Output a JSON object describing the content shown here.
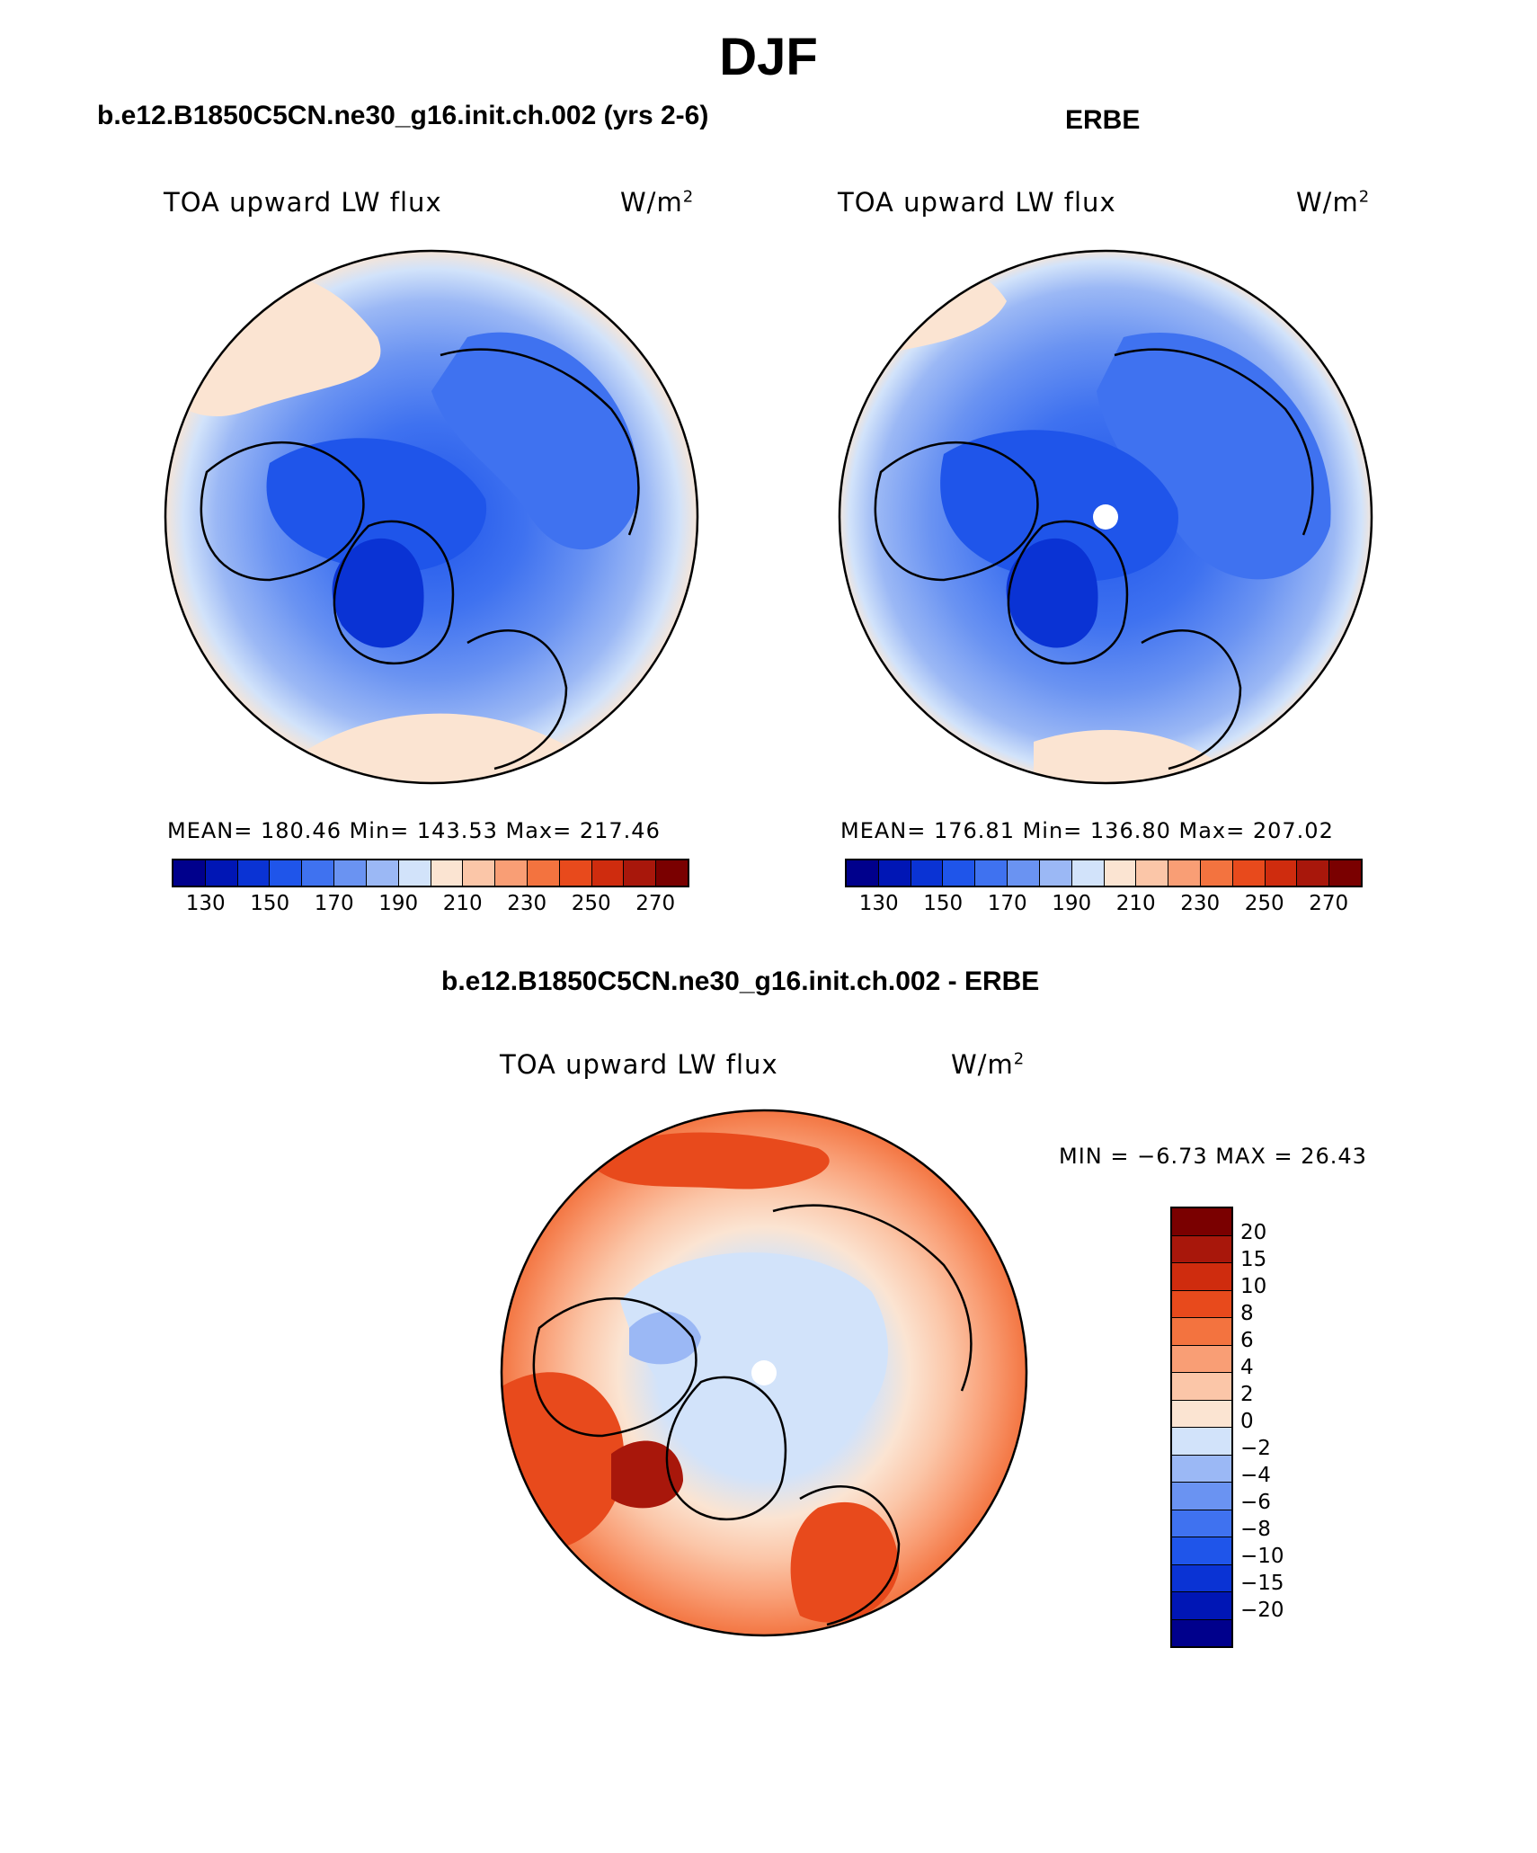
{
  "figure": {
    "season_title": "DJF",
    "panels": {
      "model": {
        "title": "b.e12.B1850C5CN.ne30_g16.init.ch.002 (yrs 2-6)",
        "variable": "TOA upward LW flux",
        "units_base": "W/m",
        "units_exp": "2",
        "stats": "MEAN= 180.46   Min= 143.53   Max= 217.46"
      },
      "obs": {
        "title": "ERBE",
        "variable": "TOA upward LW flux",
        "units_base": "W/m",
        "units_exp": "2",
        "stats": "MEAN= 176.81   Min= 136.80   Max= 207.02"
      },
      "diff": {
        "title": "b.e12.B1850C5CN.ne30_g16.init.ch.002 - ERBE",
        "variable": "TOA upward LW flux",
        "units_base": "W/m",
        "units_exp": "2",
        "stats": "MIN =   −6.73 MAX =   26.43"
      }
    },
    "abs_colorbar": {
      "tick_labels": [
        "130",
        "150",
        "170",
        "190",
        "210",
        "230",
        "250",
        "270"
      ],
      "colors": [
        "#00008c",
        "#0016b5",
        "#0a33d4",
        "#1f55ea",
        "#3f72f0",
        "#6a93f2",
        "#9bb8f5",
        "#d2e3fa",
        "#fbe4d2",
        "#fbc6a8",
        "#f99e75",
        "#f3733f",
        "#e84a1c",
        "#cf2c0e",
        "#a8170b",
        "#7a0000"
      ]
    },
    "diff_colorbar": {
      "labels": [
        "20",
        "15",
        "10",
        "8",
        "6",
        "4",
        "2",
        "0",
        "−2",
        "−4",
        "−6",
        "−8",
        "−10",
        "−15",
        "−20"
      ],
      "colors": [
        "#7a0000",
        "#a8170b",
        "#cf2c0e",
        "#e84a1c",
        "#f3733f",
        "#f99e75",
        "#fbc6a8",
        "#fbe4d2",
        "#d2e3fa",
        "#9bb8f5",
        "#6a93f2",
        "#3f72f0",
        "#1f55ea",
        "#0a33d4",
        "#0016b5",
        "#00008c"
      ]
    }
  }
}
